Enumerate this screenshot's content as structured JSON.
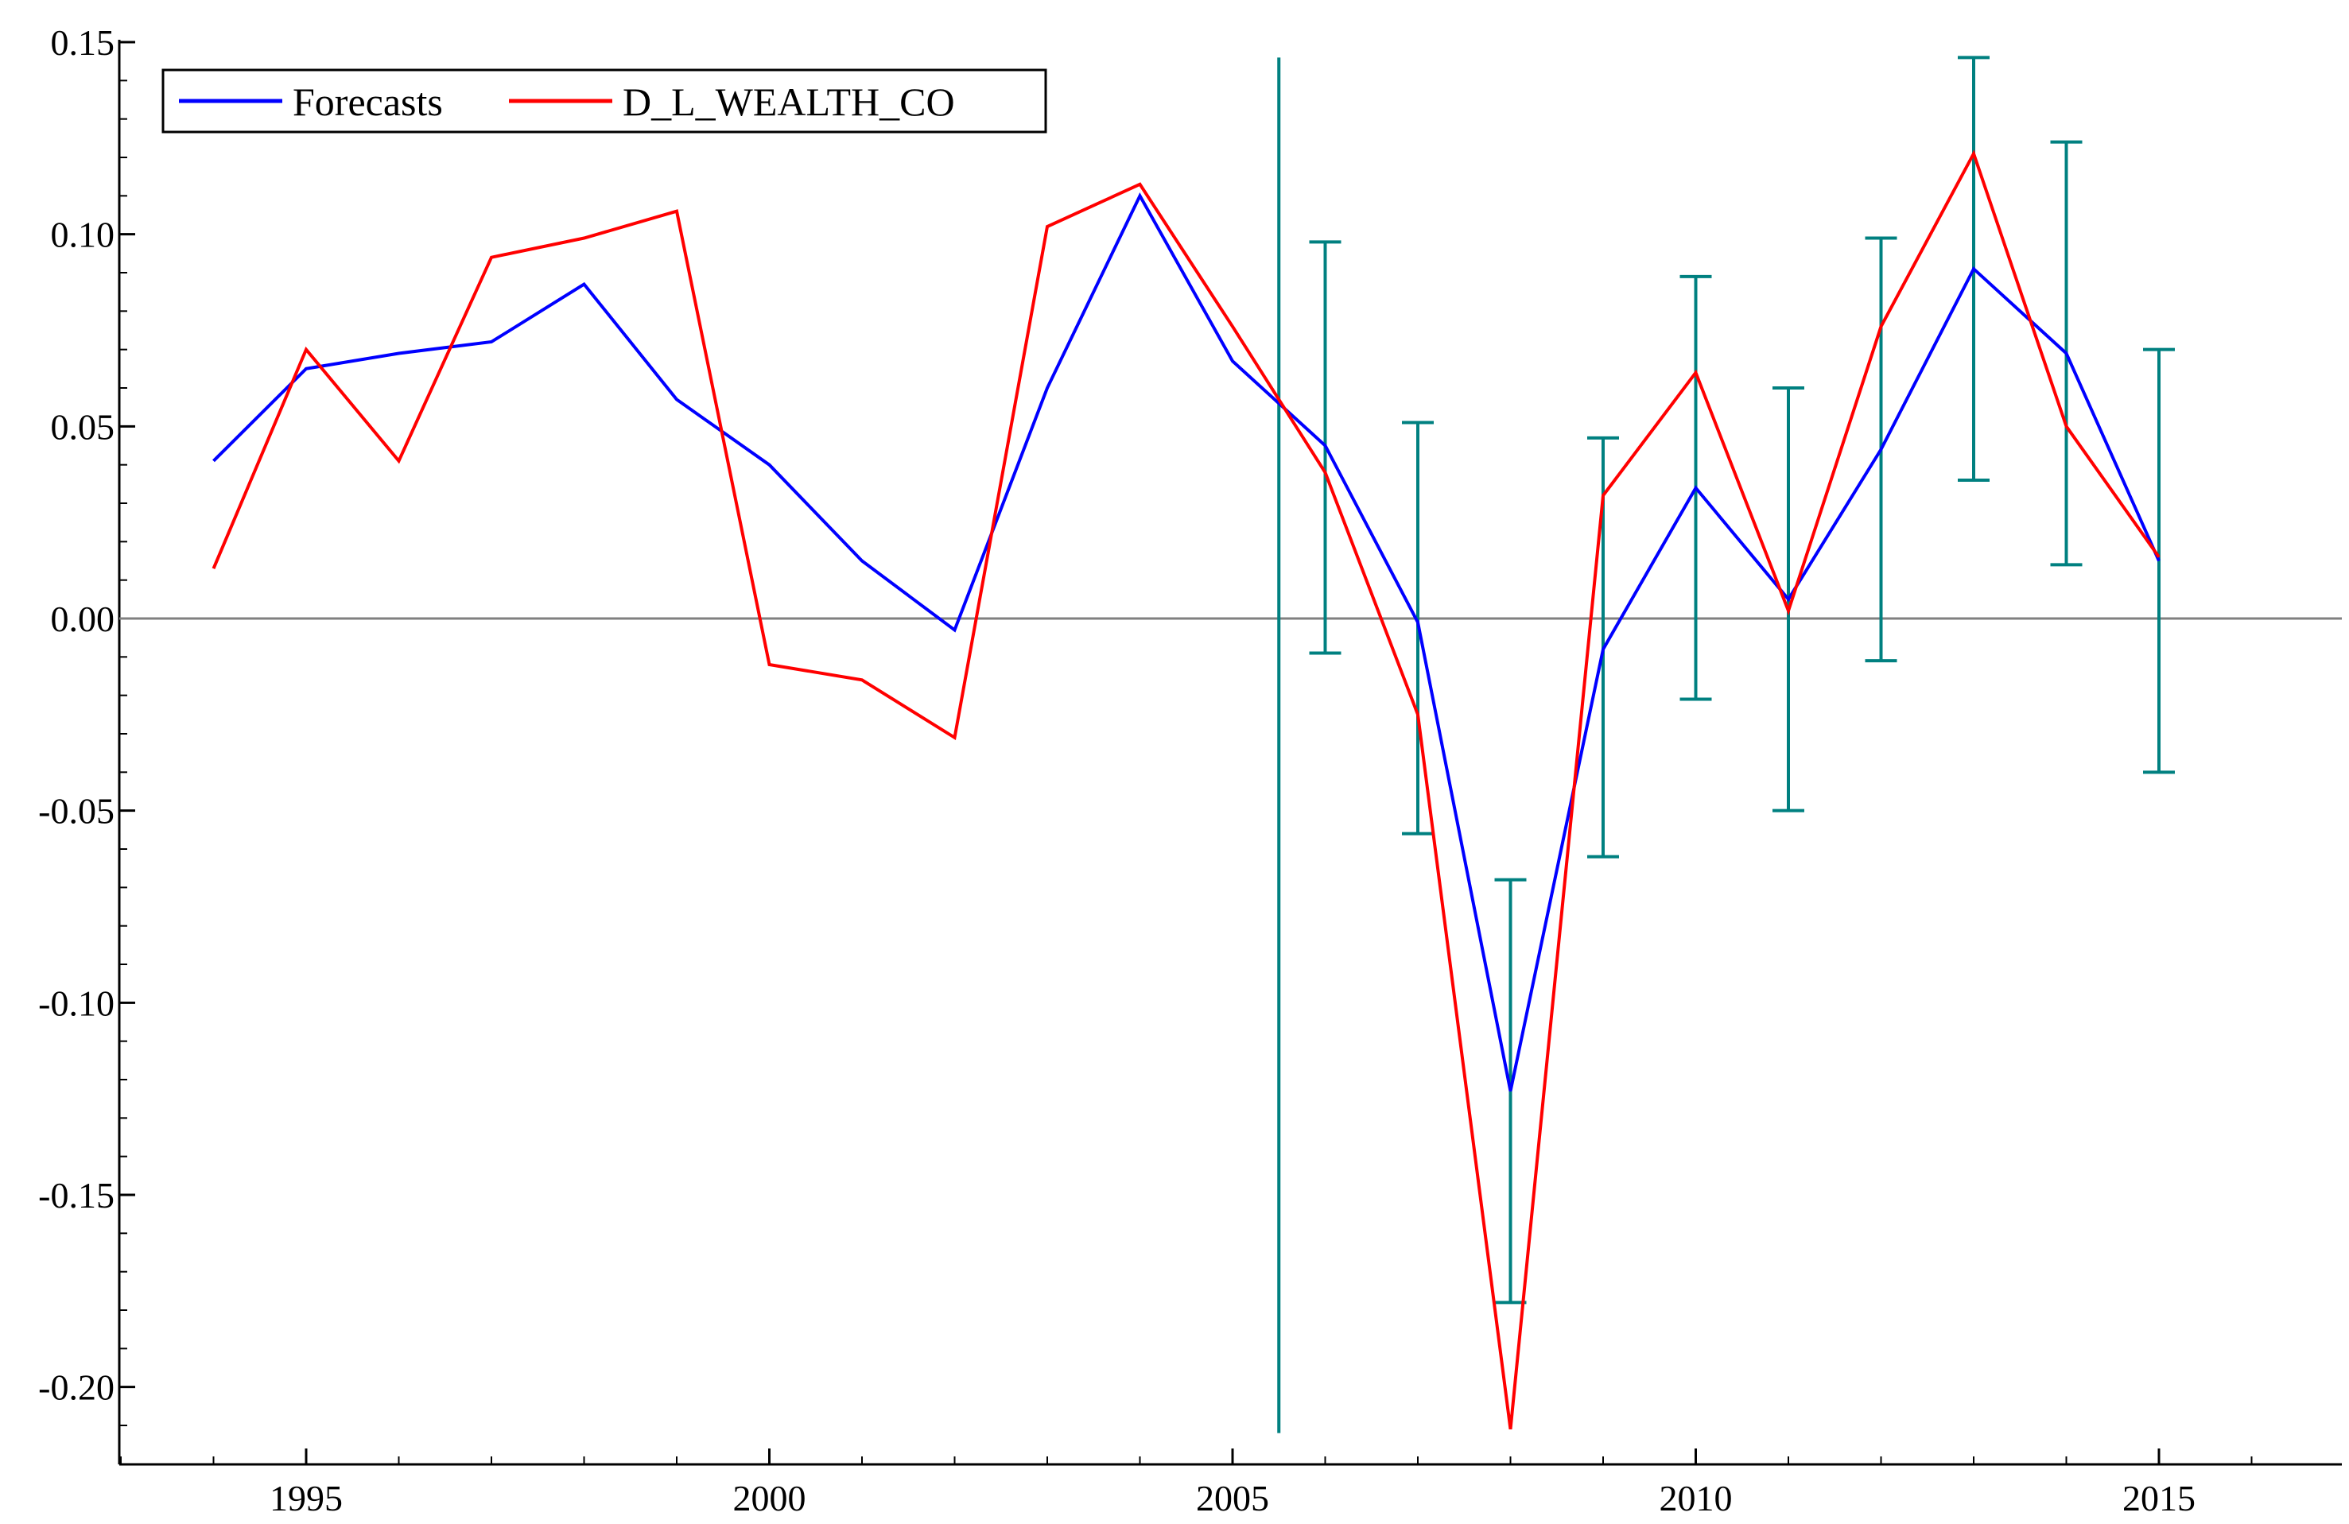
{
  "chart_data": {
    "type": "line",
    "title": "",
    "xlabel": "",
    "ylabel": "",
    "xlim": [
      1993,
      2017
    ],
    "ylim": [
      -0.22,
      0.15
    ],
    "xticks": [
      1995,
      2000,
      2005,
      2010,
      2015
    ],
    "xtick_labels": [
      "1995",
      "2000",
      "2005",
      "2010",
      "2015"
    ],
    "yticks": [
      0.15,
      0.1,
      0.05,
      0.0,
      -0.05,
      -0.1,
      -0.15,
      -0.2
    ],
    "ytick_labels": [
      "0.15",
      "0.10",
      "0.05",
      "0.00",
      "-0.05",
      "-0.10",
      "-0.15",
      "-0.20"
    ],
    "zero_line": 0.0,
    "forecast_start": 2005.5,
    "x": [
      1994,
      1995,
      1996,
      1997,
      1998,
      1999,
      2000,
      2001,
      2002,
      2003,
      2004,
      2005,
      2006,
      2007,
      2008,
      2009,
      2010,
      2011,
      2012,
      2013,
      2014,
      2015
    ],
    "series": [
      {
        "name": "Forecasts",
        "color": "#0000ff",
        "values": [
          0.041,
          0.065,
          0.069,
          0.072,
          0.087,
          0.057,
          0.04,
          0.015,
          -0.003,
          0.06,
          0.11,
          0.067,
          0.045,
          -0.001,
          -0.123,
          -0.008,
          0.034,
          0.005,
          0.044,
          0.091,
          0.069,
          0.015
        ]
      },
      {
        "name": "D_L_WEALTH_CO",
        "color": "#ff0000",
        "values": [
          0.013,
          0.07,
          0.041,
          0.094,
          0.099,
          0.106,
          -0.012,
          -0.016,
          -0.031,
          0.102,
          0.113,
          0.076,
          0.038,
          -0.025,
          -0.211,
          0.032,
          0.064,
          0.002,
          0.076,
          0.121,
          0.05,
          0.016
        ]
      }
    ],
    "error_bars": {
      "color": "#008080",
      "x": [
        2006,
        2007,
        2008,
        2009,
        2010,
        2011,
        2012,
        2013,
        2014,
        2015
      ],
      "low": [
        -0.009,
        -0.056,
        -0.178,
        -0.062,
        -0.021,
        -0.05,
        -0.011,
        0.036,
        0.014,
        -0.04
      ],
      "high": [
        0.098,
        0.051,
        -0.068,
        0.047,
        0.089,
        0.06,
        0.099,
        0.146,
        0.124,
        0.07
      ]
    },
    "legend": {
      "position": "top-left",
      "entries": [
        "Forecasts",
        "D_L_WEALTH_CO"
      ]
    },
    "grid": false
  }
}
